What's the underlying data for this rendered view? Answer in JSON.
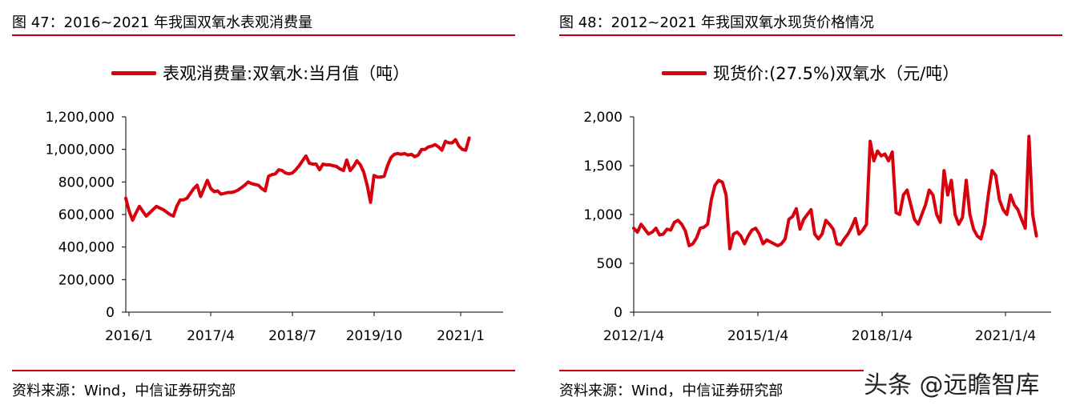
{
  "left": {
    "title": "图 47：2016~2021 年我国双氧水表观消费量",
    "source": "资料来源：Wind，中信证券研究部"
  },
  "right": {
    "title": "图 48：2012~2021 年我国双氧水现货价格情况",
    "source": "资料来源：Wind，中信证券研究部"
  },
  "watermark": "头条 @远瞻智库",
  "colors": {
    "line": "#d9000d",
    "rule": "#c0000a"
  },
  "chart_data": [
    {
      "type": "line",
      "legend_position": "top",
      "series": [
        {
          "name": "表观消费量:双氧水:当月值（吨）",
          "values": [
            700000,
            620000,
            565000,
            610000,
            650000,
            620000,
            590000,
            610000,
            630000,
            650000,
            640000,
            630000,
            615000,
            600000,
            590000,
            650000,
            690000,
            690000,
            700000,
            730000,
            760000,
            780000,
            710000,
            760000,
            810000,
            760000,
            740000,
            745000,
            725000,
            730000,
            735000,
            735000,
            740000,
            750000,
            765000,
            780000,
            800000,
            790000,
            785000,
            780000,
            760000,
            745000,
            835000,
            845000,
            850000,
            875000,
            870000,
            855000,
            850000,
            855000,
            875000,
            900000,
            930000,
            960000,
            915000,
            910000,
            910000,
            875000,
            910000,
            905000,
            905000,
            900000,
            895000,
            880000,
            870000,
            935000,
            870000,
            895000,
            930000,
            905000,
            860000,
            780000,
            675000,
            840000,
            830000,
            830000,
            835000,
            900000,
            950000,
            970000,
            975000,
            970000,
            975000,
            965000,
            970000,
            955000,
            965000,
            1000000,
            1000000,
            1015000,
            1020000,
            1030000,
            1015000,
            995000,
            1050000,
            1040000,
            1040000,
            1060000,
            1020000,
            1000000,
            995000,
            1070000
          ]
        }
      ],
      "x_tick_labels": [
        "2016/1",
        "2017/4",
        "2018/7",
        "2019/10",
        "2021/1"
      ],
      "y_tick_labels": [
        "0",
        "200,000",
        "400,000",
        "600,000",
        "800,000",
        "1,000,000",
        "1,200,000"
      ],
      "xlim": [
        0,
        111
      ],
      "ylim": [
        0,
        1200000
      ],
      "xlabel": "",
      "ylabel": "",
      "grid": false
    },
    {
      "type": "line",
      "legend_position": "top",
      "series": [
        {
          "name": "现货价:(27.5%)双氧水（元/吨）",
          "values": [
            860,
            820,
            900,
            850,
            800,
            820,
            860,
            790,
            800,
            850,
            840,
            920,
            940,
            900,
            830,
            680,
            700,
            760,
            860,
            870,
            900,
            1150,
            1300,
            1350,
            1330,
            1200,
            650,
            800,
            820,
            780,
            700,
            780,
            840,
            860,
            800,
            700,
            740,
            720,
            700,
            680,
            700,
            750,
            950,
            980,
            1060,
            850,
            950,
            1000,
            1050,
            800,
            750,
            800,
            940,
            900,
            850,
            700,
            690,
            750,
            800,
            870,
            960,
            800,
            840,
            900,
            1750,
            1550,
            1650,
            1600,
            1620,
            1550,
            1640,
            1020,
            1000,
            1200,
            1250,
            1100,
            950,
            900,
            1000,
            1100,
            1250,
            1200,
            1000,
            920,
            1450,
            1200,
            1350,
            1000,
            900,
            970,
            1350,
            1000,
            850,
            780,
            750,
            900,
            1200,
            1450,
            1400,
            1150,
            1050,
            1000,
            1200,
            1100,
            1050,
            950,
            860,
            1800,
            1000,
            780
          ]
        }
      ],
      "x_tick_labels": [
        "2012/1/4",
        "2015/1/4",
        "2018/1/4",
        "2021/1/4"
      ],
      "y_tick_labels": [
        "0",
        "500",
        "1,000",
        "1,500",
        "2,000"
      ],
      "xlim": [
        0,
        113
      ],
      "ylim": [
        0,
        2000
      ],
      "xlabel": "",
      "ylabel": "",
      "grid": false
    }
  ]
}
